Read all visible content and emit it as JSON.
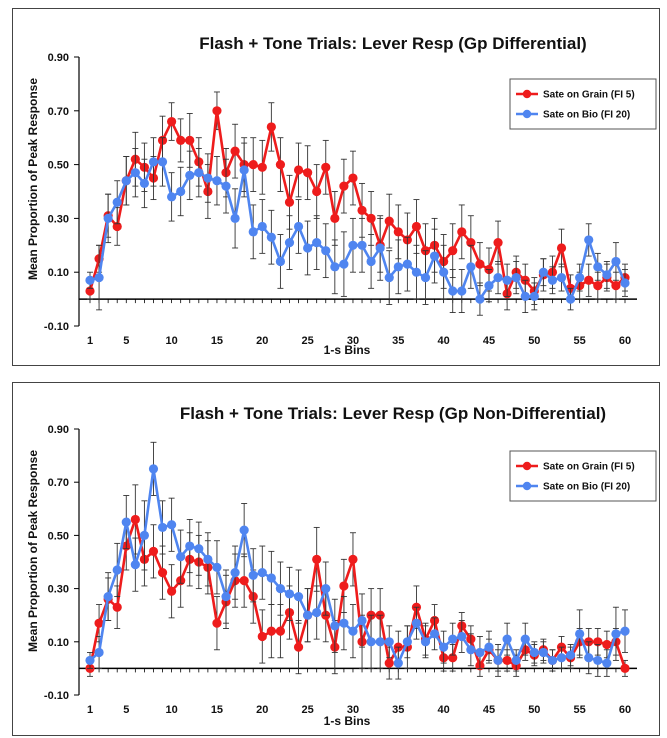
{
  "chart_data": [
    {
      "type": "line",
      "title": "Flash + Tone Trials: Lever Resp (Gp Differential)",
      "xlabel": "1-s Bins",
      "ylabel": "Mean Proportion of Peak Response",
      "xlim": [
        1,
        60
      ],
      "ylim": [
        -0.1,
        0.9
      ],
      "x_ticks": [
        "1",
        "5",
        "10",
        "15",
        "20",
        "25",
        "30",
        "35",
        "40",
        "45",
        "50",
        "55",
        "60"
      ],
      "x_tick_values": [
        1,
        5,
        10,
        15,
        20,
        25,
        30,
        35,
        40,
        45,
        50,
        55,
        60
      ],
      "y_ticks": [
        "-0.10",
        "0.10",
        "0.30",
        "0.50",
        "0.70",
        "0.90"
      ],
      "y_tick_values": [
        -0.1,
        0.1,
        0.3,
        0.5,
        0.7,
        0.9
      ],
      "grid": false,
      "legend_position": "top-right",
      "x": [
        1,
        2,
        3,
        4,
        5,
        6,
        7,
        8,
        9,
        10,
        11,
        12,
        13,
        14,
        15,
        16,
        17,
        18,
        19,
        20,
        21,
        22,
        23,
        24,
        25,
        26,
        27,
        28,
        29,
        30,
        31,
        32,
        33,
        34,
        35,
        36,
        37,
        38,
        39,
        40,
        41,
        42,
        43,
        44,
        45,
        46,
        47,
        48,
        49,
        50,
        51,
        52,
        53,
        54,
        55,
        56,
        57,
        58,
        59,
        60
      ],
      "series": [
        {
          "name": "Sate on Grain (FI 5)",
          "color": "#ee1c1c",
          "values": [
            0.03,
            0.15,
            0.31,
            0.27,
            0.44,
            0.52,
            0.49,
            0.45,
            0.59,
            0.66,
            0.59,
            0.59,
            0.51,
            0.4,
            0.7,
            0.47,
            0.55,
            0.5,
            0.5,
            0.49,
            0.64,
            0.5,
            0.36,
            0.48,
            0.47,
            0.4,
            0.49,
            0.3,
            0.42,
            0.45,
            0.33,
            0.3,
            0.2,
            0.29,
            0.25,
            0.22,
            0.27,
            0.18,
            0.2,
            0.14,
            0.18,
            0.25,
            0.21,
            0.13,
            0.11,
            0.21,
            0.02,
            0.1,
            0.07,
            0.03,
            0.09,
            0.1,
            0.19,
            0.04,
            0.05,
            0.07,
            0.05,
            0.08,
            0.05,
            0.08
          ],
          "errors": [
            0.03,
            0.05,
            0.08,
            0.07,
            0.09,
            0.1,
            0.09,
            0.08,
            0.09,
            0.07,
            0.08,
            0.1,
            0.09,
            0.1,
            0.07,
            0.09,
            0.1,
            0.1,
            0.1,
            0.1,
            0.09,
            0.1,
            0.1,
            0.1,
            0.1,
            0.1,
            0.1,
            0.1,
            0.1,
            0.1,
            0.1,
            0.1,
            0.1,
            0.1,
            0.1,
            0.1,
            0.1,
            0.1,
            0.1,
            0.1,
            0.1,
            0.1,
            0.1,
            0.08,
            0.08,
            0.08,
            0.06,
            0.06,
            0.06,
            0.05,
            0.06,
            0.06,
            0.07,
            0.05,
            0.05,
            0.06,
            0.05,
            0.05,
            0.05,
            0.05
          ]
        },
        {
          "name": "Sate on Bio (FI 20)",
          "color": "#4f85f0",
          "values": [
            0.07,
            0.08,
            0.3,
            0.36,
            0.44,
            0.47,
            0.43,
            0.51,
            0.51,
            0.38,
            0.4,
            0.46,
            0.47,
            0.45,
            0.44,
            0.42,
            0.3,
            0.48,
            0.25,
            0.27,
            0.23,
            0.14,
            0.21,
            0.27,
            0.19,
            0.21,
            0.18,
            0.12,
            0.13,
            0.2,
            0.2,
            0.14,
            0.19,
            0.08,
            0.12,
            0.13,
            0.1,
            0.08,
            0.16,
            0.1,
            0.03,
            0.03,
            0.12,
            0.0,
            0.05,
            0.08,
            0.07,
            0.08,
            0.01,
            0.01,
            0.1,
            0.07,
            0.08,
            0.0,
            0.08,
            0.22,
            0.12,
            0.09,
            0.14,
            0.06
          ],
          "errors": [
            0.03,
            0.12,
            0.09,
            0.08,
            0.09,
            0.09,
            0.09,
            0.09,
            0.09,
            0.09,
            0.09,
            0.09,
            0.09,
            0.09,
            0.09,
            0.1,
            0.11,
            0.1,
            0.1,
            0.1,
            0.1,
            0.1,
            0.1,
            0.1,
            0.1,
            0.1,
            0.1,
            0.1,
            0.12,
            0.1,
            0.1,
            0.1,
            0.12,
            0.1,
            0.1,
            0.1,
            0.1,
            0.1,
            0.1,
            0.1,
            0.08,
            0.08,
            0.08,
            0.06,
            0.06,
            0.06,
            0.06,
            0.06,
            0.06,
            0.05,
            0.05,
            0.05,
            0.05,
            0.04,
            0.05,
            0.06,
            0.05,
            0.05,
            0.07,
            0.05
          ]
        }
      ]
    },
    {
      "type": "line",
      "title": "Flash + Tone Trials: Lever Resp (Gp Non-Differential)",
      "xlabel": "1-s Bins",
      "ylabel": "Mean Proportion of Peak Response",
      "xlim": [
        1,
        60
      ],
      "ylim": [
        -0.1,
        0.9
      ],
      "x_ticks": [
        "1",
        "5",
        "10",
        "15",
        "20",
        "25",
        "30",
        "35",
        "40",
        "45",
        "50",
        "55",
        "60"
      ],
      "x_tick_values": [
        1,
        5,
        10,
        15,
        20,
        25,
        30,
        35,
        40,
        45,
        50,
        55,
        60
      ],
      "y_ticks": [
        "-0.10",
        "0.10",
        "0.30",
        "0.50",
        "0.70",
        "0.90"
      ],
      "y_tick_values": [
        -0.1,
        0.1,
        0.3,
        0.5,
        0.7,
        0.9
      ],
      "grid": false,
      "legend_position": "top-right",
      "x": [
        1,
        2,
        3,
        4,
        5,
        6,
        7,
        8,
        9,
        10,
        11,
        12,
        13,
        14,
        15,
        16,
        17,
        18,
        19,
        20,
        21,
        22,
        23,
        24,
        25,
        26,
        27,
        28,
        29,
        30,
        31,
        32,
        33,
        34,
        35,
        36,
        37,
        38,
        39,
        40,
        41,
        42,
        43,
        44,
        45,
        46,
        47,
        48,
        49,
        50,
        51,
        52,
        53,
        54,
        55,
        56,
        57,
        58,
        59,
        60
      ],
      "series": [
        {
          "name": "Sate on Grain (FI 5)",
          "color": "#ee1c1c",
          "values": [
            0.0,
            0.17,
            0.26,
            0.23,
            0.46,
            0.56,
            0.41,
            0.44,
            0.36,
            0.29,
            0.33,
            0.41,
            0.4,
            0.38,
            0.17,
            0.25,
            0.33,
            0.33,
            0.27,
            0.12,
            0.14,
            0.14,
            0.21,
            0.08,
            0.2,
            0.41,
            0.2,
            0.08,
            0.31,
            0.41,
            0.1,
            0.2,
            0.2,
            0.02,
            0.08,
            0.08,
            0.23,
            0.11,
            0.18,
            0.04,
            0.04,
            0.16,
            0.11,
            0.01,
            0.07,
            0.03,
            0.03,
            0.01,
            0.07,
            0.05,
            0.07,
            0.03,
            0.08,
            0.04,
            0.1,
            0.1,
            0.1,
            0.09,
            0.1,
            0.0
          ],
          "errors": [
            0.03,
            0.07,
            0.08,
            0.08,
            0.09,
            0.13,
            0.1,
            0.1,
            0.1,
            0.1,
            0.1,
            0.1,
            0.1,
            0.1,
            0.1,
            0.1,
            0.1,
            0.1,
            0.1,
            0.1,
            0.1,
            0.1,
            0.1,
            0.1,
            0.1,
            0.12,
            0.1,
            0.1,
            0.1,
            0.1,
            0.1,
            0.1,
            0.1,
            0.06,
            0.06,
            0.08,
            0.08,
            0.06,
            0.06,
            0.05,
            0.05,
            0.05,
            0.05,
            0.04,
            0.04,
            0.04,
            0.04,
            0.04,
            0.04,
            0.04,
            0.04,
            0.04,
            0.04,
            0.04,
            0.05,
            0.05,
            0.05,
            0.05,
            0.05,
            0.03
          ]
        },
        {
          "name": "Sate on Bio (FI 20)",
          "color": "#4f85f0",
          "values": [
            0.03,
            0.06,
            0.27,
            0.37,
            0.55,
            0.39,
            0.5,
            0.75,
            0.53,
            0.54,
            0.42,
            0.46,
            0.45,
            0.41,
            0.38,
            0.27,
            0.36,
            0.52,
            0.35,
            0.36,
            0.34,
            0.3,
            0.28,
            0.27,
            0.2,
            0.21,
            0.3,
            0.16,
            0.17,
            0.14,
            0.18,
            0.1,
            0.1,
            0.1,
            0.02,
            0.1,
            0.17,
            0.1,
            0.13,
            0.08,
            0.11,
            0.12,
            0.07,
            0.06,
            0.08,
            0.03,
            0.11,
            0.03,
            0.11,
            0.06,
            0.06,
            0.03,
            0.04,
            0.05,
            0.13,
            0.04,
            0.03,
            0.02,
            0.13,
            0.14
          ],
          "errors": [
            0.03,
            0.06,
            0.09,
            0.1,
            0.1,
            0.1,
            0.13,
            0.1,
            0.1,
            0.1,
            0.1,
            0.1,
            0.1,
            0.1,
            0.1,
            0.1,
            0.1,
            0.1,
            0.1,
            0.1,
            0.1,
            0.1,
            0.1,
            0.1,
            0.1,
            0.1,
            0.1,
            0.1,
            0.1,
            0.1,
            0.1,
            0.1,
            0.1,
            0.06,
            0.06,
            0.06,
            0.06,
            0.06,
            0.06,
            0.06,
            0.06,
            0.06,
            0.06,
            0.06,
            0.06,
            0.06,
            0.06,
            0.04,
            0.06,
            0.04,
            0.04,
            0.04,
            0.04,
            0.04,
            0.09,
            0.06,
            0.06,
            0.05,
            0.1,
            0.08
          ]
        }
      ]
    }
  ]
}
